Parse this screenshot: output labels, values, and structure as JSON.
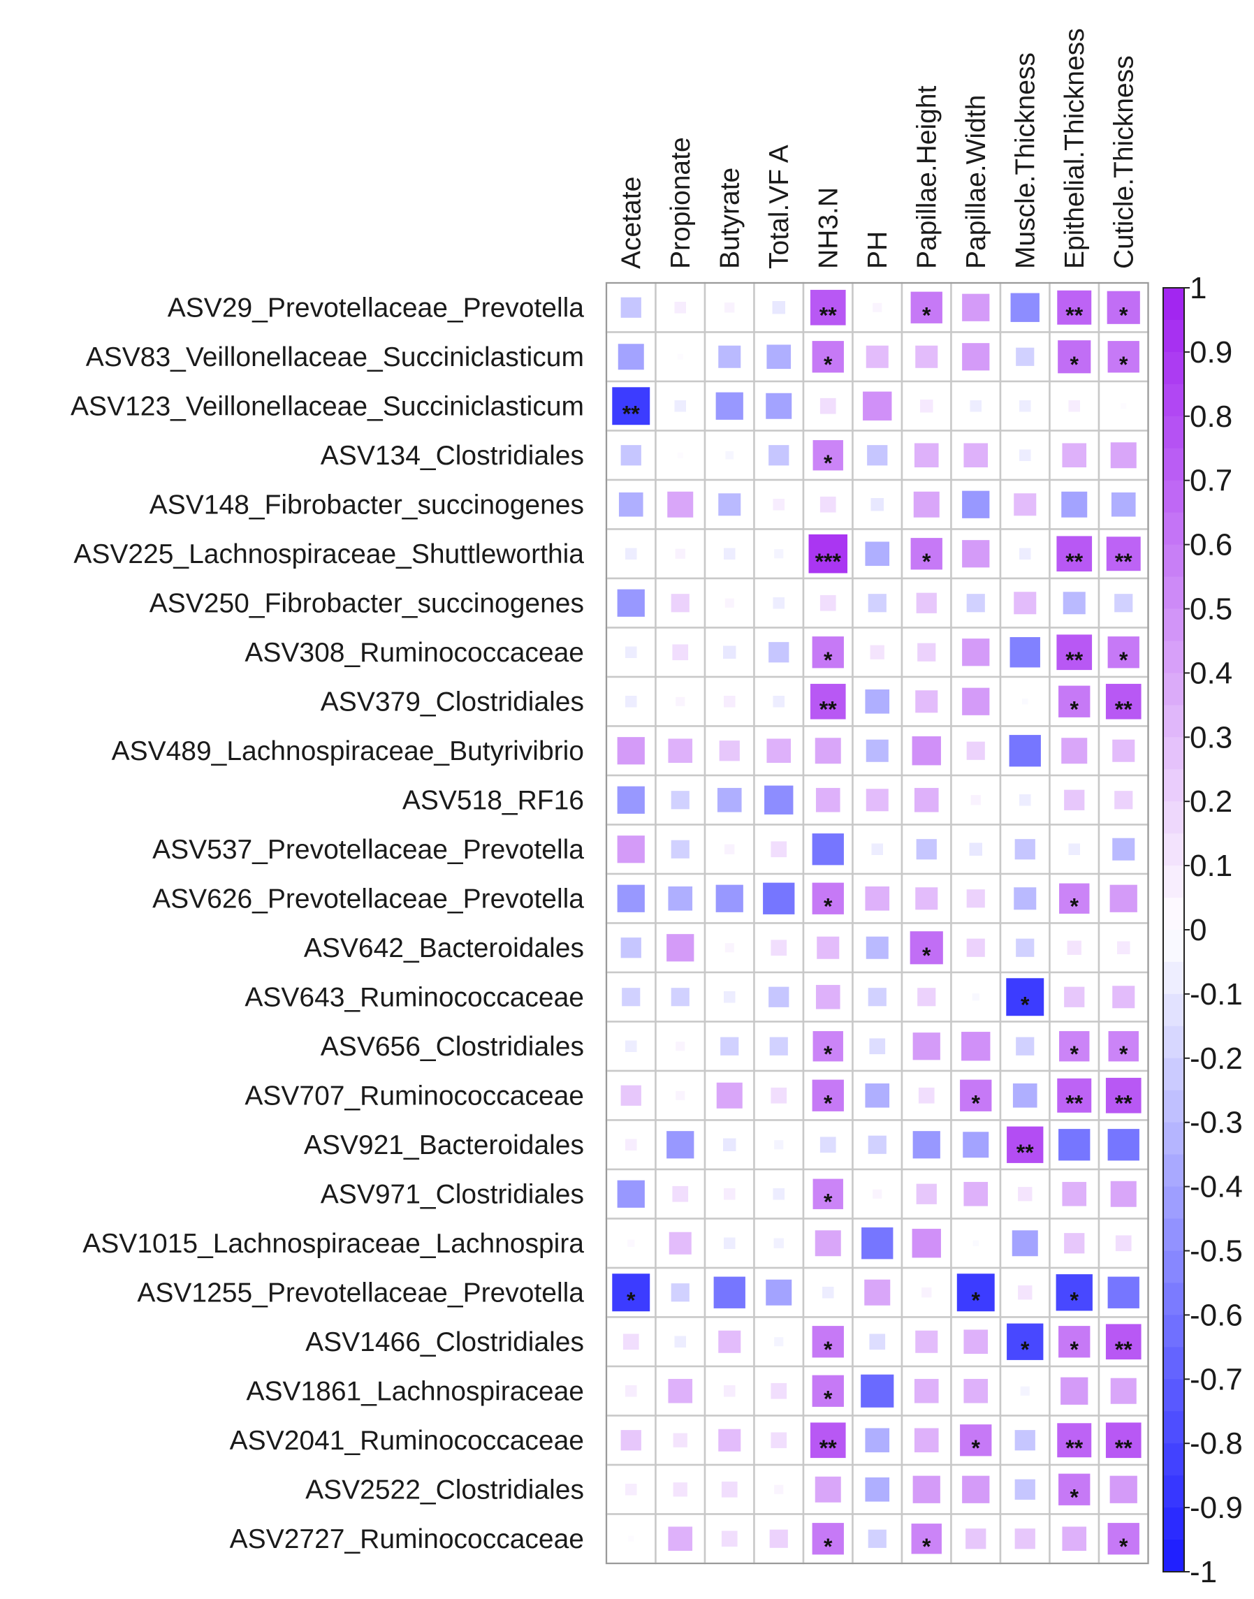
{
  "chart_data": {
    "type": "heatmap",
    "title": "",
    "columns": [
      "Acetate",
      "Propionate",
      "Butyrate",
      "Total.VF A",
      "NH3.N",
      "PH",
      "Papillae.Height",
      "Papillae.Width",
      "Muscle.Thickness",
      "Epithelial.Thickness",
      "Cuticle.Thickness"
    ],
    "rows": [
      "ASV29_Prevotellaceae_Prevotella",
      "ASV83_Veillonellaceae_Succiniclasticum",
      "ASV123_Veillonellaceae_Succiniclasticum",
      "ASV134_Clostridiales",
      "ASV148_Fibrobacter_succinogenes",
      "ASV225_Lachnospiraceae_Shuttleworthia",
      "ASV250_Fibrobacter_succinogenes",
      "ASV308_Ruminococcaceae",
      "ASV379_Clostridiales",
      "ASV489_Lachnospiraceae_Butyrivibrio",
      "ASV518_RF16",
      "ASV537_Prevotellaceae_Prevotella",
      "ASV626_Prevotellaceae_Prevotella",
      "ASV642_Bacteroidales",
      "ASV643_Ruminococcaceae",
      "ASV656_Clostridiales",
      "ASV707_Ruminococcaceae",
      "ASV921_Bacteroidales",
      "ASV971_Clostridiales",
      "ASV1015_Lachnospiraceae_Lachnospira",
      "ASV1255_Prevotellaceae_Prevotella",
      "ASV1466_Clostridiales",
      "ASV1861_Lachnospiraceae",
      "ASV2041_Ruminococcaceae",
      "ASV2522_Clostridiales",
      "ASV2727_Ruminococcaceae"
    ],
    "values": [
      [
        -0.25,
        0.08,
        0.06,
        -0.1,
        0.75,
        0.05,
        0.6,
        0.45,
        -0.5,
        0.7,
        0.65
      ],
      [
        -0.4,
        0.02,
        -0.3,
        -0.35,
        0.6,
        0.3,
        0.3,
        0.45,
        -0.2,
        0.65,
        0.6
      ],
      [
        -0.85,
        -0.08,
        -0.45,
        -0.4,
        0.15,
        0.5,
        0.1,
        -0.08,
        -0.08,
        0.08,
        0.02
      ],
      [
        -0.25,
        0.02,
        -0.04,
        -0.25,
        0.55,
        -0.25,
        0.35,
        0.35,
        -0.08,
        0.35,
        0.4
      ],
      [
        -0.35,
        0.4,
        -0.3,
        0.08,
        0.15,
        -0.1,
        0.4,
        -0.45,
        0.3,
        -0.4,
        -0.35
      ],
      [
        -0.08,
        0.06,
        -0.08,
        -0.05,
        0.9,
        -0.35,
        0.6,
        0.45,
        -0.08,
        0.75,
        0.7
      ],
      [
        -0.45,
        0.2,
        0.05,
        -0.08,
        0.15,
        -0.2,
        0.25,
        -0.2,
        0.3,
        -0.3,
        -0.2
      ],
      [
        -0.08,
        0.15,
        -0.1,
        -0.25,
        0.6,
        0.12,
        0.2,
        0.45,
        -0.55,
        0.75,
        0.6
      ],
      [
        -0.08,
        0.05,
        0.08,
        -0.08,
        0.75,
        -0.35,
        0.3,
        0.45,
        -0.02,
        0.6,
        0.75
      ],
      [
        0.45,
        0.35,
        0.25,
        0.35,
        0.4,
        -0.3,
        0.5,
        0.2,
        -0.6,
        0.4,
        0.3
      ],
      [
        -0.45,
        -0.2,
        -0.35,
        -0.5,
        0.35,
        0.3,
        0.35,
        0.06,
        -0.08,
        0.25,
        0.2
      ],
      [
        0.45,
        -0.2,
        0.06,
        0.15,
        -0.6,
        -0.08,
        -0.25,
        -0.1,
        -0.25,
        -0.08,
        -0.3
      ],
      [
        -0.45,
        -0.35,
        -0.45,
        -0.6,
        0.6,
        0.35,
        0.3,
        0.2,
        -0.3,
        0.55,
        0.45
      ],
      [
        -0.25,
        0.45,
        0.05,
        0.15,
        0.3,
        -0.3,
        0.65,
        0.2,
        -0.2,
        0.12,
        0.1
      ],
      [
        -0.2,
        -0.2,
        -0.08,
        -0.25,
        0.35,
        -0.2,
        0.2,
        -0.03,
        -0.85,
        0.25,
        0.3
      ],
      [
        -0.08,
        0.05,
        -0.2,
        -0.2,
        0.55,
        -0.15,
        0.45,
        0.5,
        -0.2,
        0.55,
        0.55
      ],
      [
        0.25,
        0.05,
        0.4,
        0.15,
        0.6,
        -0.35,
        0.15,
        0.6,
        -0.35,
        0.7,
        0.75
      ],
      [
        0.08,
        -0.45,
        -0.1,
        -0.05,
        -0.15,
        -0.2,
        -0.45,
        -0.4,
        0.8,
        -0.6,
        -0.6
      ],
      [
        -0.45,
        0.15,
        0.08,
        -0.08,
        0.55,
        0.05,
        0.25,
        0.35,
        0.12,
        0.35,
        0.4
      ],
      [
        0.03,
        0.3,
        -0.08,
        -0.06,
        0.4,
        -0.6,
        0.5,
        -0.02,
        -0.4,
        0.25,
        0.15
      ],
      [
        -0.85,
        -0.2,
        -0.6,
        -0.4,
        -0.08,
        0.4,
        0.06,
        -0.85,
        0.12,
        -0.8,
        -0.6
      ],
      [
        0.15,
        -0.08,
        0.3,
        -0.05,
        0.6,
        -0.15,
        0.3,
        0.35,
        -0.8,
        0.6,
        0.75
      ],
      [
        0.08,
        0.35,
        0.08,
        0.15,
        0.6,
        -0.65,
        0.35,
        0.35,
        -0.05,
        0.45,
        0.4
      ],
      [
        0.25,
        0.12,
        0.3,
        0.15,
        0.75,
        -0.35,
        0.35,
        0.6,
        -0.25,
        0.7,
        0.75
      ],
      [
        0.08,
        0.12,
        0.15,
        0.05,
        0.4,
        -0.35,
        0.45,
        0.45,
        -0.25,
        0.6,
        0.45
      ],
      [
        0.02,
        0.35,
        0.15,
        0.2,
        0.6,
        -0.2,
        0.55,
        0.25,
        0.25,
        0.35,
        0.6
      ]
    ],
    "significance": [
      [
        "",
        "",
        "",
        "",
        "**",
        "",
        "*",
        "",
        "",
        "**",
        "*"
      ],
      [
        "",
        "",
        "",
        "",
        "*",
        "",
        "",
        "",
        "",
        "*",
        "*"
      ],
      [
        "**",
        "",
        "",
        "",
        "",
        "",
        "",
        "",
        "",
        "",
        ""
      ],
      [
        "",
        "",
        "",
        "",
        "*",
        "",
        "",
        "",
        "",
        "",
        ""
      ],
      [
        "",
        "",
        "",
        "",
        "",
        "",
        "",
        "",
        "",
        "",
        ""
      ],
      [
        "",
        "",
        "",
        "",
        "***",
        "",
        "*",
        "",
        "",
        "**",
        "**"
      ],
      [
        "",
        "",
        "",
        "",
        "",
        "",
        "",
        "",
        "",
        "",
        ""
      ],
      [
        "",
        "",
        "",
        "",
        "*",
        "",
        "",
        "",
        "",
        "**",
        "*"
      ],
      [
        "",
        "",
        "",
        "",
        "**",
        "",
        "",
        "",
        "",
        "*",
        "**"
      ],
      [
        "",
        "",
        "",
        "",
        "",
        "",
        "",
        "",
        "",
        "",
        ""
      ],
      [
        "",
        "",
        "",
        "",
        "",
        "",
        "",
        "",
        "",
        "",
        ""
      ],
      [
        "",
        "",
        "",
        "",
        "",
        "",
        "",
        "",
        "",
        "",
        ""
      ],
      [
        "",
        "",
        "",
        "",
        "*",
        "",
        "",
        "",
        "",
        "*",
        ""
      ],
      [
        "",
        "",
        "",
        "",
        "",
        "",
        "*",
        "",
        "",
        "",
        ""
      ],
      [
        "",
        "",
        "",
        "",
        "",
        "",
        "",
        "",
        "*",
        "",
        ""
      ],
      [
        "",
        "",
        "",
        "",
        "*",
        "",
        "",
        "",
        "",
        "*",
        "*"
      ],
      [
        "",
        "",
        "",
        "",
        "*",
        "",
        "",
        "*",
        "",
        "**",
        "**"
      ],
      [
        "",
        "",
        "",
        "",
        "",
        "",
        "",
        "",
        "**",
        "",
        ""
      ],
      [
        "",
        "",
        "",
        "",
        "*",
        "",
        "",
        "",
        "",
        "",
        ""
      ],
      [
        "",
        "",
        "",
        "",
        "",
        "",
        "",
        "",
        "",
        "",
        ""
      ],
      [
        "*",
        "",
        "",
        "",
        "",
        "",
        "",
        "*",
        "",
        "*",
        ""
      ],
      [
        "",
        "",
        "",
        "",
        "*",
        "",
        "",
        "",
        "*",
        "*",
        "**"
      ],
      [
        "",
        "",
        "",
        "",
        "*",
        "",
        "",
        "",
        "",
        "",
        ""
      ],
      [
        "",
        "",
        "",
        "",
        "**",
        "",
        "",
        "*",
        "",
        "**",
        "**"
      ],
      [
        "",
        "",
        "",
        "",
        "",
        "",
        "",
        "",
        "",
        "*",
        ""
      ],
      [
        "",
        "",
        "",
        "",
        "*",
        "",
        "*",
        "",
        "",
        "",
        "*"
      ]
    ],
    "color_scale": {
      "range": [
        -1,
        1
      ],
      "ticks": [
        "1",
        "0.9",
        "0.8",
        "0.7",
        "0.6",
        "0.5",
        "0.4",
        "0.3",
        "0.2",
        "0.1",
        "0",
        "-0.1",
        "-0.2",
        "-0.3",
        "-0.4",
        "-0.5",
        "-0.6",
        "-0.7",
        "-0.8",
        "-0.9",
        "-1"
      ],
      "negative_color": "#1a1aff",
      "neutral_color": "#ffffff",
      "positive_color": "#a020f0"
    },
    "legend_position": "right"
  }
}
